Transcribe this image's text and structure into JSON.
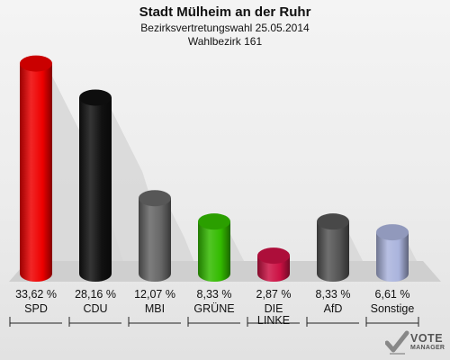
{
  "chart_data": {
    "type": "bar",
    "title": "Stadt Mülheim an der Ruhr",
    "subtitle": "Bezirksvertretungswahl 25.05.2014",
    "subtitle2": "Wahlbezirk 161",
    "categories": [
      "SPD",
      "CDU",
      "MBI",
      "GRÜNE",
      "DIE LINKE",
      "AfD",
      "Sonstige"
    ],
    "values": [
      33.62,
      28.16,
      12.07,
      8.33,
      2.87,
      8.33,
      6.61
    ],
    "value_labels": [
      "33,62 %",
      "28,16 %",
      "12,07 %",
      "8,33 %",
      "2,87 %",
      "8,33 %",
      "6,61 %"
    ],
    "colors": [
      "#ee0000",
      "#111111",
      "#666666",
      "#33bb00",
      "#cc1144",
      "#555555",
      "#aab4dd"
    ],
    "ylim": [
      0,
      35
    ],
    "grid": false,
    "legend": "none"
  },
  "logo": {
    "line1": "VOTE",
    "line2": "MANAGER"
  }
}
